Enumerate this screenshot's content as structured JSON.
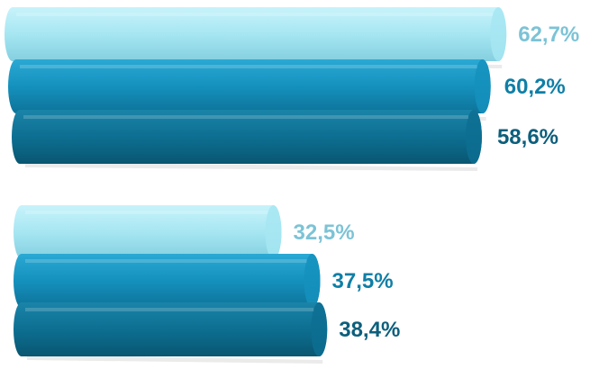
{
  "chart_data": {
    "type": "bar",
    "orientation": "horizontal",
    "style": "3d-cylinder",
    "categories": [
      "",
      ""
    ],
    "series": [
      {
        "values": [
          62.7,
          32.5
        ],
        "labels": [
          "62,7%",
          "32,5%"
        ],
        "color": "#a6e6f2",
        "label_color": "#7cc3d6"
      },
      {
        "values": [
          60.2,
          37.5
        ],
        "labels": [
          "60,2%",
          "37,5%"
        ],
        "color": "#1591bd",
        "label_color": "#0f7fa6"
      },
      {
        "values": [
          58.6,
          38.4
        ],
        "labels": [
          "58,6%",
          "38,4%"
        ],
        "color": "#0d6f92",
        "label_color": "#0c5f7c"
      }
    ],
    "xlim": [
      0,
      66
    ],
    "grid": false,
    "legend": "none"
  }
}
